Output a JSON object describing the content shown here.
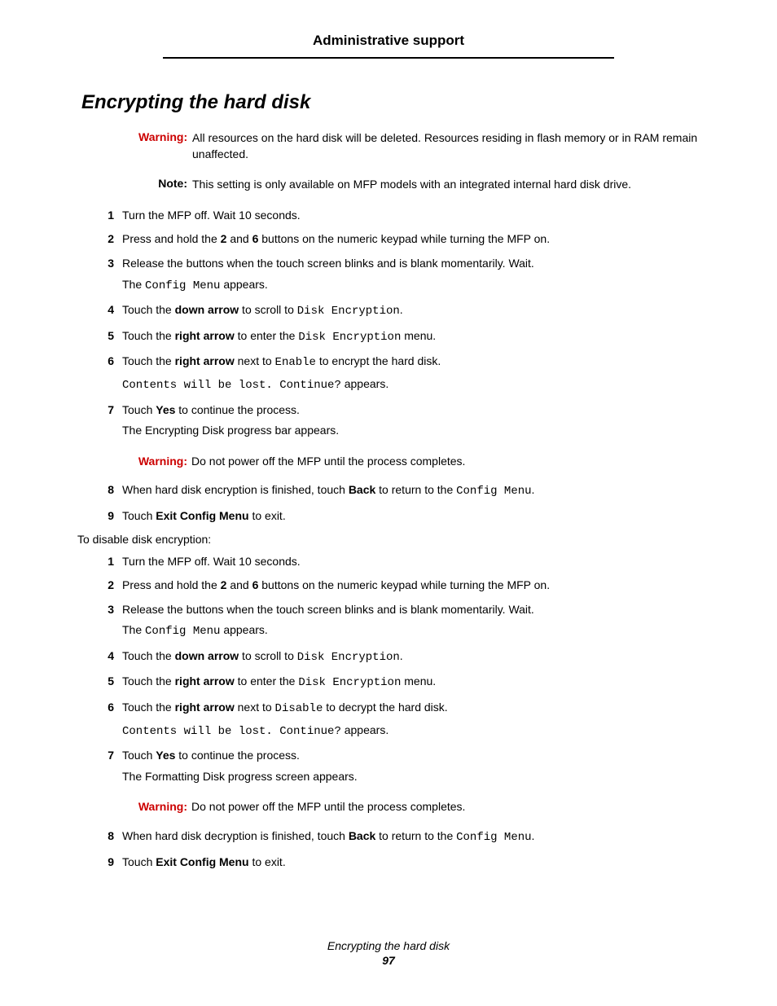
{
  "header": {
    "title": "Administrative support"
  },
  "page_title": "Encrypting the hard disk",
  "warning_top": {
    "label": "Warning:",
    "text": "All resources on the hard disk will be deleted. Resources residing in flash memory or in RAM remain unaffected."
  },
  "note_top": {
    "label": "Note:",
    "text": "This setting is only available on MFP models with an integrated internal hard disk drive."
  },
  "steps1": {
    "s1": "Turn the MFP off. Wait 10 seconds.",
    "s2_a": "Press and hold the ",
    "s2_b": "2",
    "s2_c": " and ",
    "s2_d": "6",
    "s2_e": " buttons on the numeric keypad while turning the MFP on.",
    "s3_a": "Release the buttons when the touch screen blinks and is blank momentarily. Wait.",
    "s3_b1": "The ",
    "s3_b2": "Config Menu",
    "s3_b3": " appears.",
    "s4_a": "Touch the ",
    "s4_b": "down arrow",
    "s4_c": " to scroll to ",
    "s4_d": "Disk Encryption",
    "s4_e": ".",
    "s5_a": "Touch the ",
    "s5_b": "right arrow",
    "s5_c": " to enter the ",
    "s5_d": "Disk Encryption",
    "s5_e": " menu.",
    "s6_a": "Touch the ",
    "s6_b": "right arrow",
    "s6_c": " next to ",
    "s6_d": "Enable",
    "s6_e": " to encrypt the hard disk.",
    "s6_f": "Contents will be lost. Continue?",
    "s6_g": " appears.",
    "s7_a": "Touch ",
    "s7_b": "Yes",
    "s7_c": " to continue the process.",
    "s7_d": "The Encrypting Disk progress bar appears.",
    "s7_warn_label": "Warning:",
    "s7_warn_text": "Do not power off the MFP until the process completes.",
    "s8_a": "When hard disk encryption is finished, touch ",
    "s8_b": "Back",
    "s8_c": " to return to the ",
    "s8_d": "Config Menu",
    "s8_e": ".",
    "s9_a": "Touch ",
    "s9_b": "Exit Config Menu",
    "s9_c": " to exit."
  },
  "disable_intro": "To disable disk encryption:",
  "steps2": {
    "s1": "Turn the MFP off. Wait 10 seconds.",
    "s2_a": "Press and hold the ",
    "s2_b": "2",
    "s2_c": " and ",
    "s2_d": "6",
    "s2_e": " buttons on the numeric keypad while turning the MFP on.",
    "s3_a": "Release the buttons when the touch screen blinks and is blank momentarily. Wait.",
    "s3_b1": "The ",
    "s3_b2": "Config Menu",
    "s3_b3": " appears.",
    "s4_a": "Touch the ",
    "s4_b": "down arrow",
    "s4_c": " to scroll to ",
    "s4_d": "Disk Encryption",
    "s4_e": ".",
    "s5_a": "Touch the ",
    "s5_b": "right arrow",
    "s5_c": " to enter the ",
    "s5_d": "Disk Encryption",
    "s5_e": " menu.",
    "s6_a": "Touch the ",
    "s6_b": "right arrow",
    "s6_c": " next to ",
    "s6_d": "Disable",
    "s6_e": " to decrypt the hard disk.",
    "s6_f": "Contents will be lost. Continue?",
    "s6_g": " appears.",
    "s7_a": "Touch ",
    "s7_b": "Yes",
    "s7_c": " to continue the process.",
    "s7_d": "The Formatting Disk progress screen appears.",
    "s7_warn_label": "Warning:",
    "s7_warn_text": "Do not power off the MFP until the process completes.",
    "s8_a": "When hard disk decryption is finished, touch ",
    "s8_b": "Back",
    "s8_c": " to return to the ",
    "s8_d": "Config Menu",
    "s8_e": ".",
    "s9_a": "Touch ",
    "s9_b": "Exit Config Menu",
    "s9_c": " to exit."
  },
  "footer": {
    "title": "Encrypting the hard disk",
    "page": "97"
  },
  "nums": {
    "n1": "1",
    "n2": "2",
    "n3": "3",
    "n4": "4",
    "n5": "5",
    "n6": "6",
    "n7": "7",
    "n8": "8",
    "n9": "9"
  }
}
